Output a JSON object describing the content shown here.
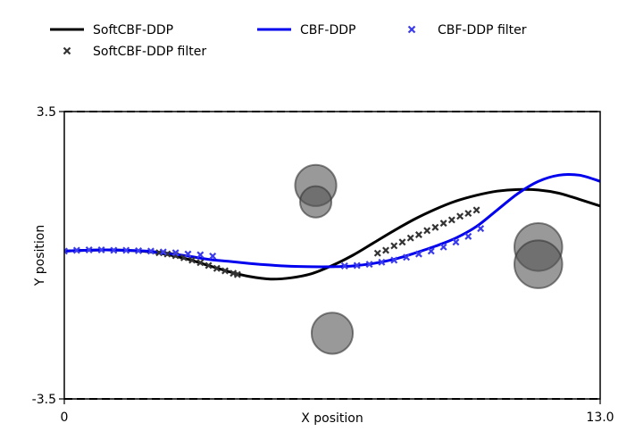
{
  "chart_data": {
    "type": "line",
    "xlabel": "X position",
    "ylabel": "Y position",
    "xlim": [
      0,
      13.0
    ],
    "ylim": [
      -3.5,
      3.5
    ],
    "x_ticks": [
      "0",
      "13.0"
    ],
    "y_ticks": [
      "3.5",
      "-3.5"
    ],
    "boundary_lines_y": [
      3.5,
      -3.5
    ],
    "legend_position": "top",
    "series": [
      {
        "name": "SoftCBF-DDP",
        "kind": "line",
        "color": "#000000",
        "x": [
          0,
          0.5,
          1,
          1.5,
          2,
          2.5,
          3,
          3.5,
          4,
          4.5,
          5,
          5.5,
          6,
          6.5,
          7,
          7.5,
          8,
          8.5,
          9,
          9.5,
          10,
          10.5,
          11,
          11.5,
          12,
          12.5,
          13
        ],
        "y": [
          0.1,
          0.12,
          0.13,
          0.12,
          0.09,
          0.02,
          -0.1,
          -0.25,
          -0.4,
          -0.52,
          -0.58,
          -0.55,
          -0.45,
          -0.25,
          0.0,
          0.3,
          0.6,
          0.88,
          1.12,
          1.32,
          1.46,
          1.56,
          1.6,
          1.59,
          1.51,
          1.36,
          1.2
        ]
      },
      {
        "name": "SoftCBF-DDP filter",
        "kind": "markers",
        "color": "#333333",
        "x": [
          2.3,
          2.5,
          2.7,
          2.9,
          3.1,
          3.3,
          3.5,
          3.7,
          3.9,
          4.1,
          4.2,
          7.6,
          7.8,
          8.0,
          8.2,
          8.4,
          8.6,
          8.8,
          9.0,
          9.2,
          9.4,
          9.6,
          9.8,
          10.0
        ],
        "y": [
          0.06,
          0.03,
          -0.01,
          -0.06,
          -0.12,
          -0.18,
          -0.25,
          -0.32,
          -0.38,
          -0.44,
          -0.47,
          0.05,
          0.12,
          0.23,
          0.32,
          0.42,
          0.5,
          0.6,
          0.68,
          0.78,
          0.86,
          0.95,
          1.02,
          1.1
        ]
      },
      {
        "name": "CBF-DDP",
        "kind": "line",
        "color": "#0000ee",
        "x": [
          0,
          0.5,
          1,
          1.5,
          2,
          2.5,
          3,
          3.5,
          4,
          4.5,
          5,
          5.5,
          6,
          6.5,
          7,
          7.5,
          8,
          8.5,
          9,
          9.5,
          10,
          10.5,
          11,
          11.5,
          12,
          12.5,
          13
        ],
        "y": [
          0.1,
          0.12,
          0.13,
          0.12,
          0.1,
          0.05,
          -0.02,
          -0.1,
          -0.15,
          -0.2,
          -0.24,
          -0.27,
          -0.28,
          -0.28,
          -0.26,
          -0.2,
          -0.1,
          0.05,
          0.22,
          0.42,
          0.7,
          1.1,
          1.5,
          1.8,
          1.95,
          1.95,
          1.8
        ]
      },
      {
        "name": "CBF-DDP filter",
        "kind": "markers",
        "color": "#3b3bee",
        "x": [
          0.0,
          0.3,
          0.6,
          0.9,
          1.2,
          1.5,
          1.8,
          2.1,
          2.4,
          2.7,
          3.0,
          3.3,
          3.6,
          6.8,
          7.1,
          7.4,
          7.7,
          8.0,
          8.3,
          8.6,
          8.9,
          9.2,
          9.5,
          9.8,
          10.1
        ],
        "y": [
          0.1,
          0.12,
          0.13,
          0.13,
          0.12,
          0.12,
          0.11,
          0.1,
          0.08,
          0.06,
          0.03,
          0.01,
          -0.02,
          -0.26,
          -0.25,
          -0.22,
          -0.17,
          -0.12,
          -0.05,
          0.03,
          0.1,
          0.2,
          0.32,
          0.46,
          0.65
        ]
      }
    ],
    "obstacles": [
      {
        "x": 6.1,
        "y": 1.7,
        "r": 0.5,
        "color": "#555555"
      },
      {
        "x": 6.1,
        "y": 1.3,
        "r": 0.38,
        "color": "#555555"
      },
      {
        "x": 6.5,
        "y": -1.9,
        "r": 0.5,
        "color": "#555555"
      },
      {
        "x": 11.5,
        "y": 0.2,
        "r": 0.58,
        "color": "#555555"
      },
      {
        "x": 11.5,
        "y": -0.22,
        "r": 0.58,
        "color": "#555555"
      }
    ]
  }
}
